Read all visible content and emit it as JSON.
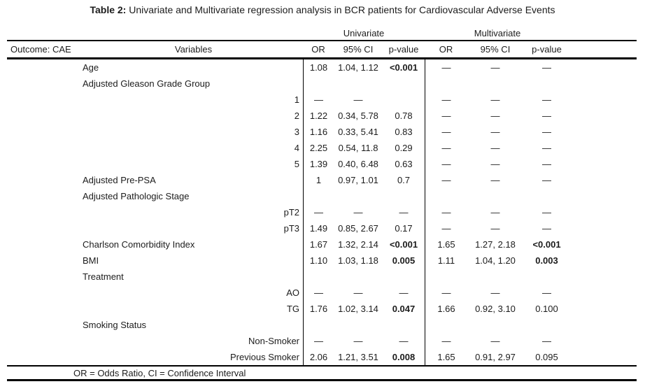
{
  "title": {
    "prefix": "Table 2:",
    "text": " Univariate and Multivariate regression analysis in BCR patients for Cardiovascular Adverse Events"
  },
  "table": {
    "group_headers": {
      "univariate": "Univariate",
      "multivariate": "Multivariate"
    },
    "columns": {
      "outcome": "Outcome: CAE",
      "variables": "Variables",
      "or": "OR",
      "ci": "95% CI",
      "p": "p-value"
    },
    "rows": [
      {
        "variable": "Age",
        "level": false,
        "uni": {
          "or": "1.08",
          "ci": "1.04, 1.12",
          "p": "<0.001",
          "p_bold": true
        },
        "multi": {
          "or": "—",
          "ci": "—",
          "p": "—",
          "p_bold": false
        }
      },
      {
        "variable": "Adjusted Gleason Grade Group",
        "level": false,
        "uni": {
          "or": "",
          "ci": "",
          "p": "",
          "p_bold": false
        },
        "multi": {
          "or": "",
          "ci": "",
          "p": "",
          "p_bold": false
        }
      },
      {
        "variable": "1",
        "level": true,
        "uni": {
          "or": "—",
          "ci": "—",
          "p": "",
          "p_bold": false
        },
        "multi": {
          "or": "—",
          "ci": "—",
          "p": "—",
          "p_bold": false
        }
      },
      {
        "variable": "2",
        "level": true,
        "uni": {
          "or": "1.22",
          "ci": "0.34, 5.78",
          "p": "0.78",
          "p_bold": false
        },
        "multi": {
          "or": "—",
          "ci": "—",
          "p": "—",
          "p_bold": false
        }
      },
      {
        "variable": "3",
        "level": true,
        "uni": {
          "or": "1.16",
          "ci": "0.33, 5.41",
          "p": "0.83",
          "p_bold": false
        },
        "multi": {
          "or": "—",
          "ci": "—",
          "p": "—",
          "p_bold": false
        }
      },
      {
        "variable": "4",
        "level": true,
        "uni": {
          "or": "2.25",
          "ci": "0.54, 11.8",
          "p": "0.29",
          "p_bold": false
        },
        "multi": {
          "or": "—",
          "ci": "—",
          "p": "—",
          "p_bold": false
        }
      },
      {
        "variable": "5",
        "level": true,
        "uni": {
          "or": "1.39",
          "ci": "0.40, 6.48",
          "p": "0.63",
          "p_bold": false
        },
        "multi": {
          "or": "—",
          "ci": "—",
          "p": "—",
          "p_bold": false
        }
      },
      {
        "variable": "Adjusted Pre-PSA",
        "level": false,
        "uni": {
          "or": "1",
          "ci": "0.97, 1.01",
          "p": "0.7",
          "p_bold": false
        },
        "multi": {
          "or": "—",
          "ci": "—",
          "p": "—",
          "p_bold": false
        }
      },
      {
        "variable": "Adjusted Pathologic Stage",
        "level": false,
        "uni": {
          "or": "",
          "ci": "",
          "p": "",
          "p_bold": false
        },
        "multi": {
          "or": "",
          "ci": "",
          "p": "",
          "p_bold": false
        }
      },
      {
        "variable": "pT2",
        "level": true,
        "uni": {
          "or": "—",
          "ci": "—",
          "p": "—",
          "p_bold": false
        },
        "multi": {
          "or": "—",
          "ci": "—",
          "p": "—",
          "p_bold": false
        }
      },
      {
        "variable": "pT3",
        "level": true,
        "uni": {
          "or": "1.49",
          "ci": "0.85, 2.67",
          "p": "0.17",
          "p_bold": false
        },
        "multi": {
          "or": "—",
          "ci": "—",
          "p": "—",
          "p_bold": false
        }
      },
      {
        "variable": "Charlson Comorbidity Index",
        "level": false,
        "uni": {
          "or": "1.67",
          "ci": "1.32, 2.14",
          "p": "<0.001",
          "p_bold": true
        },
        "multi": {
          "or": "1.65",
          "ci": "1.27, 2.18",
          "p": "<0.001",
          "p_bold": true
        }
      },
      {
        "variable": "BMI",
        "level": false,
        "uni": {
          "or": "1.10",
          "ci": "1.03, 1.18",
          "p": "0.005",
          "p_bold": true
        },
        "multi": {
          "or": "1.11",
          "ci": "1.04, 1.20",
          "p": "0.003",
          "p_bold": true
        }
      },
      {
        "variable": "Treatment",
        "level": false,
        "uni": {
          "or": "",
          "ci": "",
          "p": "",
          "p_bold": false
        },
        "multi": {
          "or": "",
          "ci": "",
          "p": "",
          "p_bold": false
        }
      },
      {
        "variable": "AO",
        "level": true,
        "uni": {
          "or": "—",
          "ci": "—",
          "p": "—",
          "p_bold": false
        },
        "multi": {
          "or": "—",
          "ci": "—",
          "p": "—",
          "p_bold": false
        }
      },
      {
        "variable": "TG",
        "level": true,
        "uni": {
          "or": "1.76",
          "ci": "1.02, 3.14",
          "p": "0.047",
          "p_bold": true
        },
        "multi": {
          "or": "1.66",
          "ci": "0.92, 3.10",
          "p": "0.100",
          "p_bold": false
        }
      },
      {
        "variable": "Smoking Status",
        "level": false,
        "uni": {
          "or": "",
          "ci": "",
          "p": "",
          "p_bold": false
        },
        "multi": {
          "or": "",
          "ci": "",
          "p": "",
          "p_bold": false
        }
      },
      {
        "variable": "Non-Smoker",
        "level": true,
        "uni": {
          "or": "—",
          "ci": "—",
          "p": "—",
          "p_bold": false
        },
        "multi": {
          "or": "—",
          "ci": "—",
          "p": "—",
          "p_bold": false
        }
      },
      {
        "variable": "Previous Smoker",
        "level": true,
        "uni": {
          "or": "2.06",
          "ci": "1.21, 3.51",
          "p": "0.008",
          "p_bold": true
        },
        "multi": {
          "or": "1.65",
          "ci": "0.91, 2.97",
          "p": "0.095",
          "p_bold": false
        }
      }
    ],
    "footnote": "OR = Odds Ratio, CI = Confidence Interval"
  }
}
